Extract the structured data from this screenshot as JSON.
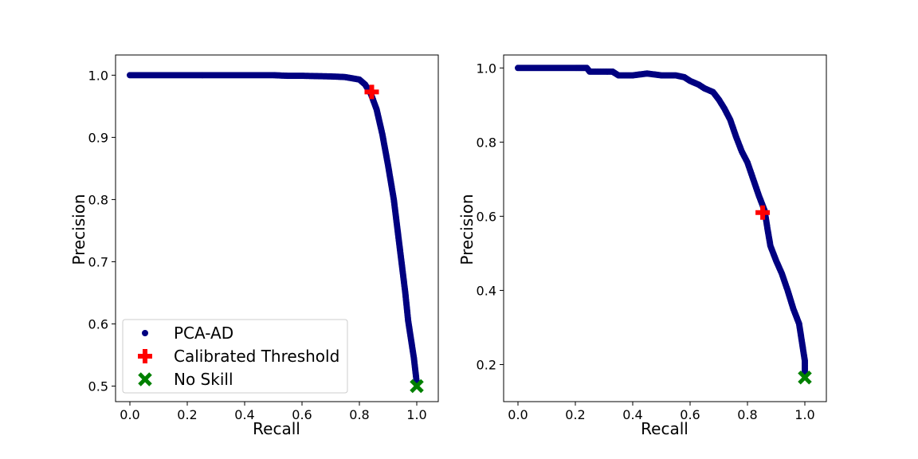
{
  "chart_data": [
    {
      "type": "scatter",
      "xlabel": "Recall",
      "ylabel": "Precision",
      "xlim": [
        -0.05,
        1.075
      ],
      "ylim": [
        0.475,
        1.0325
      ],
      "xticks": [
        "0.0",
        "0.2",
        "0.4",
        "0.6",
        "0.8",
        "1.0"
      ],
      "yticks": [
        "0.5",
        "0.6",
        "0.7",
        "0.8",
        "0.9",
        "1.0"
      ],
      "legend": {
        "placement": "lower-left"
      },
      "colors": {
        "curve": "#000080",
        "threshold": "#ff0000",
        "noskill": "#008000"
      },
      "series": [
        {
          "name": "PCA-AD",
          "marker": "circle",
          "x": [
            0.0,
            0.1,
            0.2,
            0.3,
            0.4,
            0.5,
            0.55,
            0.6,
            0.7,
            0.75,
            0.8,
            0.82,
            0.84,
            0.86,
            0.88,
            0.9,
            0.92,
            0.94,
            0.96,
            0.97,
            0.98,
            0.99,
            1.0
          ],
          "y": [
            1.0,
            1.0,
            1.0,
            1.0,
            1.0,
            1.0,
            0.999,
            0.999,
            0.998,
            0.997,
            0.993,
            0.985,
            0.97,
            0.945,
            0.905,
            0.855,
            0.8,
            0.725,
            0.65,
            0.605,
            0.575,
            0.545,
            0.505
          ]
        },
        {
          "name": "Calibrated Threshold",
          "marker": "plus",
          "x": [
            0.843
          ],
          "y": [
            0.973
          ]
        },
        {
          "name": "No Skill",
          "marker": "x",
          "x": [
            1.0
          ],
          "y": [
            0.5
          ]
        }
      ]
    },
    {
      "type": "scatter",
      "xlabel": "Recall",
      "ylabel": "Precision",
      "xlim": [
        -0.05,
        1.075
      ],
      "ylim": [
        0.1,
        1.035
      ],
      "xticks": [
        "0.0",
        "0.2",
        "0.4",
        "0.6",
        "0.8",
        "1.0"
      ],
      "yticks": [
        "0.2",
        "0.4",
        "0.6",
        "0.8",
        "1.0"
      ],
      "colors": {
        "curve": "#000080",
        "threshold": "#ff0000",
        "noskill": "#008000"
      },
      "series": [
        {
          "name": "",
          "marker": "circle",
          "x": [
            0.0,
            0.1,
            0.2,
            0.24,
            0.25,
            0.33,
            0.35,
            0.4,
            0.45,
            0.5,
            0.55,
            0.58,
            0.6,
            0.63,
            0.65,
            0.68,
            0.7,
            0.72,
            0.74,
            0.76,
            0.78,
            0.8,
            0.82,
            0.84,
            0.86,
            0.87,
            0.88,
            0.9,
            0.92,
            0.94,
            0.96,
            0.98,
            0.99,
            1.0,
            1.0
          ],
          "y": [
            1.0,
            1.0,
            1.0,
            1.0,
            0.99,
            0.99,
            0.98,
            0.98,
            0.985,
            0.98,
            0.98,
            0.975,
            0.965,
            0.955,
            0.945,
            0.935,
            0.915,
            0.89,
            0.86,
            0.815,
            0.775,
            0.745,
            0.7,
            0.655,
            0.615,
            0.565,
            0.52,
            0.48,
            0.445,
            0.4,
            0.35,
            0.31,
            0.26,
            0.21,
            0.18
          ]
        },
        {
          "name": "",
          "marker": "plus",
          "x": [
            0.853
          ],
          "y": [
            0.61
          ]
        },
        {
          "name": "",
          "marker": "x",
          "x": [
            1.0
          ],
          "y": [
            0.165
          ]
        }
      ]
    }
  ]
}
